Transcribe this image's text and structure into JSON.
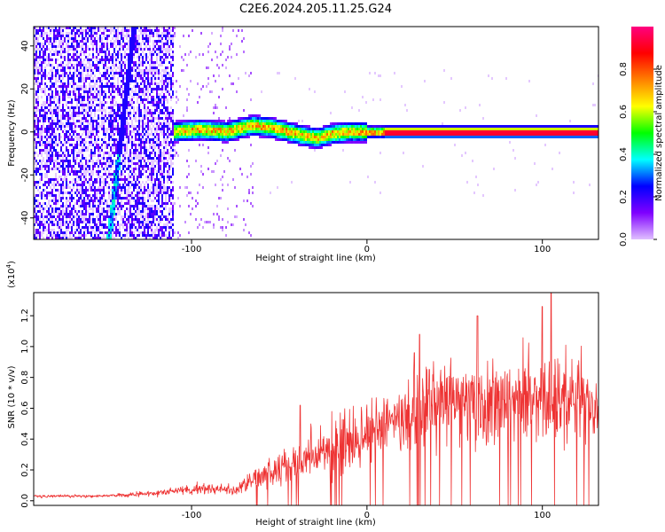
{
  "title": "C2E6.2024.205.11.25.G24",
  "chart_data": [
    {
      "type": "heatmap",
      "xlabel": "Height of straight line (km)",
      "ylabel": "Frequency (Hz)",
      "xlim": [
        -190,
        132
      ],
      "ylim": [
        -50,
        49
      ],
      "x_ticks": [
        -100,
        0,
        100
      ],
      "y_ticks": [
        -40,
        -20,
        0,
        20,
        40
      ],
      "colorbar": {
        "label": "Normalized spectral amplitude",
        "range": [
          0.0,
          1.0
        ],
        "ticks": [
          0.0,
          0.2,
          0.4,
          0.6,
          0.8
        ],
        "colormap": [
          "#e0c0ff",
          "#7f00ff",
          "#0000ff",
          "#00ffff",
          "#00ff00",
          "#ffff00",
          "#ff8000",
          "#ff0000",
          "#ff0080"
        ]
      },
      "features": {
        "noise_region_x": [
          -190,
          -110
        ],
        "sparse_region_x": [
          -110,
          -65
        ],
        "streak": {
          "x_top": -133,
          "y_top": 47,
          "x_bottom": -147,
          "y_bottom": -50
        },
        "ridge_x": [
          -110,
          132
        ],
        "ridge_freq_hz": [
          [
            -110,
            0
          ],
          [
            -95,
            1
          ],
          [
            -80,
            0
          ],
          [
            -65,
            3
          ],
          [
            -55,
            2
          ],
          [
            -45,
            0
          ],
          [
            -35,
            -2
          ],
          [
            -28,
            -3
          ],
          [
            -20,
            -1
          ],
          [
            -10,
            0
          ],
          [
            0,
            0
          ],
          [
            20,
            0
          ],
          [
            60,
            0
          ],
          [
            100,
            0
          ],
          [
            132,
            0
          ]
        ]
      }
    },
    {
      "type": "line",
      "xlabel": "Height of straight line (km)",
      "ylabel": "SNR (10 * v/v)",
      "y_multiplier": "(x10",
      "y_multiplier_exp": "4",
      "y_multiplier_close": ")",
      "xlim": [
        -190,
        132
      ],
      "ylim": [
        -0.03,
        1.35
      ],
      "x_ticks": [
        -100,
        0,
        100
      ],
      "y_ticks": [
        "0.0",
        "0.2",
        "0.4",
        "0.6",
        "0.8",
        "1.0",
        "1.2"
      ],
      "series_color": "#ee3333",
      "envelope": {
        "x": [
          -190,
          -150,
          -120,
          -105,
          -90,
          -75,
          -62,
          -50,
          -40,
          -30,
          -20,
          -10,
          0,
          10,
          20,
          30,
          40,
          50,
          60,
          70,
          80,
          90,
          100,
          110,
          120,
          132
        ],
        "mean": [
          0.03,
          0.03,
          0.05,
          0.07,
          0.08,
          0.07,
          0.15,
          0.2,
          0.24,
          0.3,
          0.34,
          0.38,
          0.42,
          0.48,
          0.56,
          0.6,
          0.65,
          0.66,
          0.62,
          0.62,
          0.65,
          0.66,
          0.66,
          0.66,
          0.64,
          0.62
        ],
        "spread": [
          0.01,
          0.01,
          0.02,
          0.03,
          0.04,
          0.03,
          0.1,
          0.12,
          0.15,
          0.18,
          0.2,
          0.22,
          0.24,
          0.26,
          0.27,
          0.28,
          0.3,
          0.3,
          0.3,
          0.3,
          0.3,
          0.3,
          0.3,
          0.3,
          0.28,
          0.26
        ]
      },
      "peaks": [
        {
          "x": -38,
          "y": 0.62
        },
        {
          "x": 27,
          "y": 0.96
        },
        {
          "x": 30,
          "y": 1.08
        },
        {
          "x": 63,
          "y": 1.2
        },
        {
          "x": 100,
          "y": 1.26
        },
        {
          "x": 105,
          "y": 1.35
        }
      ]
    }
  ]
}
